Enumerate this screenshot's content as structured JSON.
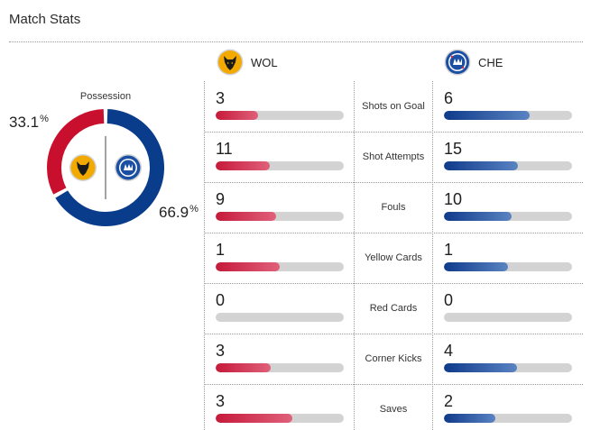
{
  "title": "Match Stats",
  "teams": {
    "home": {
      "abbr": "WOL",
      "badge": "wolves-badge-icon",
      "color": "#c8102e"
    },
    "away": {
      "abbr": "CHE",
      "badge": "chelsea-badge-icon",
      "color": "#0a3c8c"
    }
  },
  "possession": {
    "label": "Possession",
    "home": 33.1,
    "away": 66.9,
    "home_text": "33.1",
    "away_text": "66.9",
    "unit": "%"
  },
  "stats": [
    {
      "label": "Shots on Goal",
      "home": 3,
      "away": 6
    },
    {
      "label": "Shot Attempts",
      "home": 11,
      "away": 15
    },
    {
      "label": "Fouls",
      "home": 9,
      "away": 10
    },
    {
      "label": "Yellow Cards",
      "home": 1,
      "away": 1
    },
    {
      "label": "Red Cards",
      "home": 0,
      "away": 0
    },
    {
      "label": "Corner Kicks",
      "home": 3,
      "away": 4
    },
    {
      "label": "Saves",
      "home": 3,
      "away": 2
    }
  ]
}
